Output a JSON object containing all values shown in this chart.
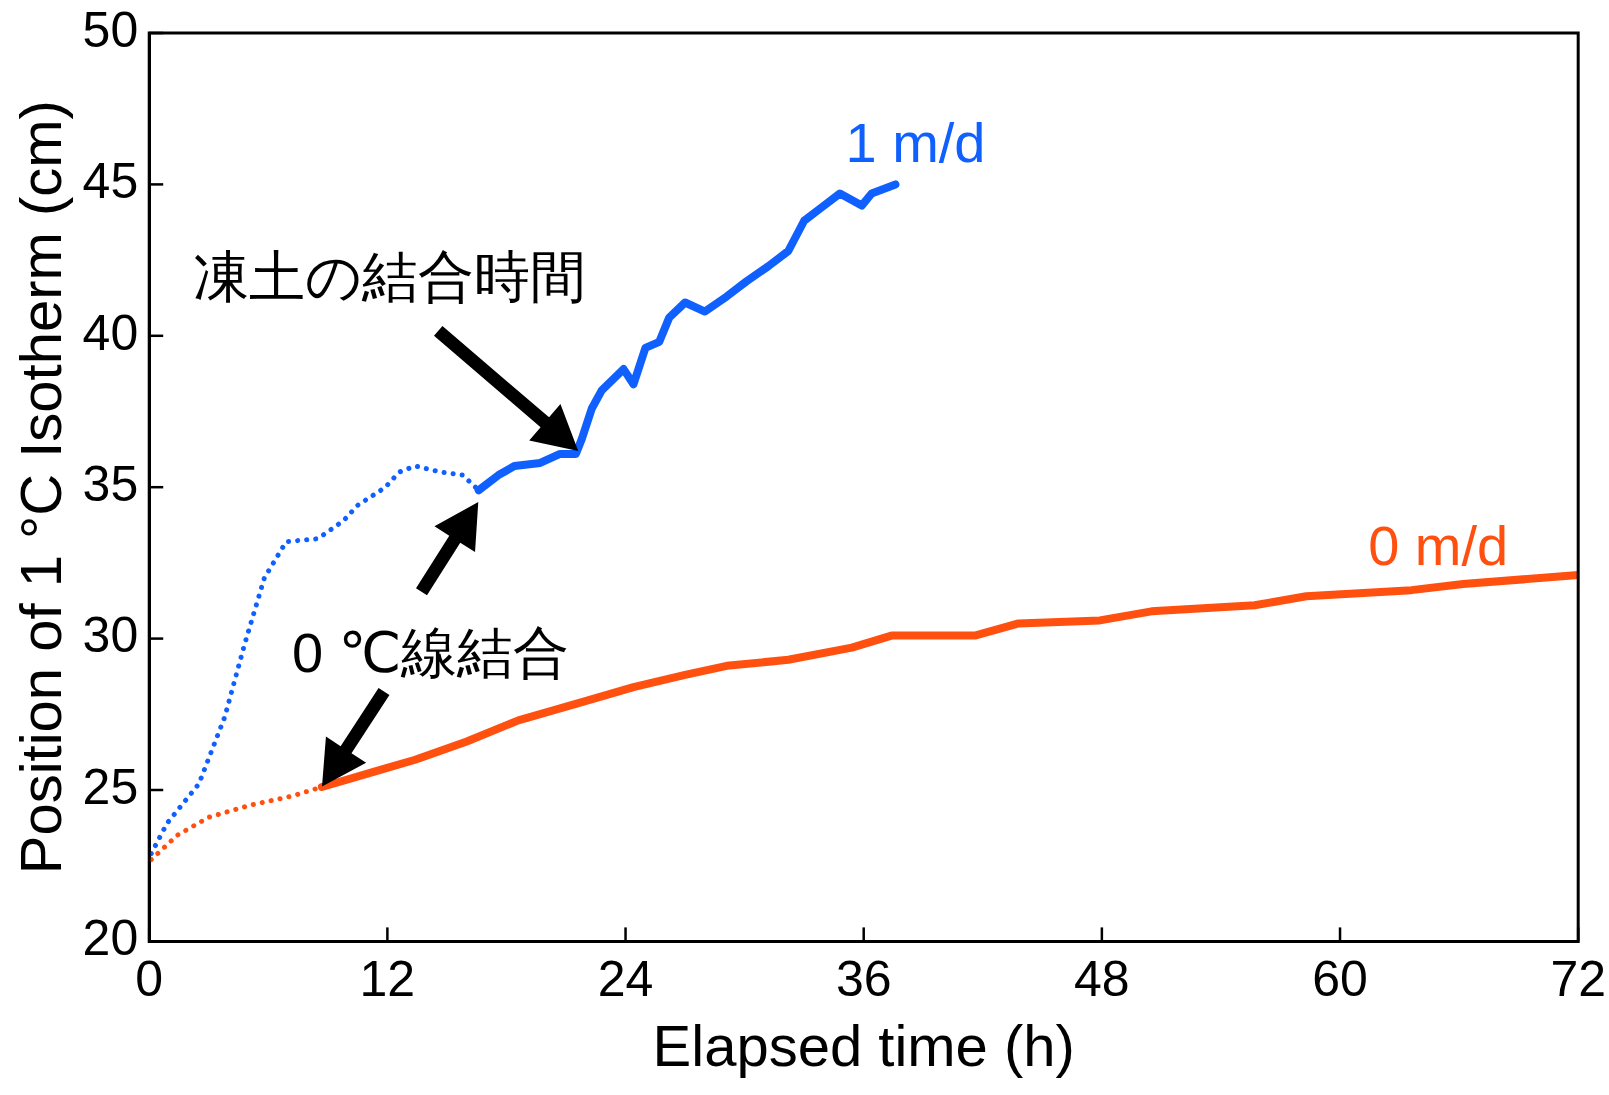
{
  "chart_data": {
    "type": "line",
    "xlabel": "Elapsed time (h)",
    "ylabel": "Position of 1 °C Isotherm (cm)",
    "xlim": [
      0,
      72
    ],
    "xticks": [
      0,
      12,
      24,
      36,
      48,
      60,
      72
    ],
    "ylim": [
      20,
      50
    ],
    "yticks": [
      20,
      25,
      30,
      35,
      40,
      45,
      50
    ],
    "grid": false,
    "legend": false,
    "marker": "none",
    "series": [
      {
        "color": "#1060ff",
        "line_style": "dotted",
        "x": [
          0.1,
          0.9,
          2.5,
          3.8,
          4.8,
          5.8,
          6.9,
          8.5,
          9.8,
          10.5,
          11.9,
          12.6,
          13.4,
          14.7,
          15.8,
          16.6
        ],
        "values": [
          22.9,
          23.9,
          25.2,
          27.4,
          29.8,
          32.0,
          33.2,
          33.3,
          33.9,
          34.4,
          35.0,
          35.5,
          35.7,
          35.5,
          35.4,
          34.9
        ]
      },
      {
        "name": "1 m/d",
        "color": "#1060ff",
        "line_style": "solid",
        "x": [
          16.6,
          17.6,
          18.4,
          19.7,
          20.7,
          21.5,
          21.8,
          22.3,
          22.8,
          23.9,
          24.4,
          25.0,
          25.7,
          26.2,
          27.0,
          28.0,
          29.1,
          30.1,
          31.2,
          32.2,
          33.0,
          33.8,
          34.8,
          35.9,
          36.4,
          37.6
        ],
        "values": [
          34.9,
          35.4,
          35.7,
          35.8,
          36.1,
          36.1,
          36.6,
          37.6,
          38.2,
          38.9,
          38.4,
          39.6,
          39.8,
          40.6,
          41.1,
          40.8,
          41.3,
          41.8,
          42.3,
          42.8,
          43.8,
          44.2,
          44.7,
          44.3,
          44.7,
          45.0
        ]
      },
      {
        "color": "#ff5010",
        "line_style": "dotted",
        "x": [
          0.1,
          1.4,
          3.0,
          5.1,
          7.2,
          8.7
        ],
        "values": [
          22.7,
          23.5,
          24.1,
          24.5,
          24.8,
          25.1
        ]
      },
      {
        "name": "0 m/d",
        "color": "#ff5010",
        "line_style": "solid",
        "x": [
          8.7,
          11.3,
          13.4,
          16.0,
          18.6,
          21.8,
          24.4,
          27.0,
          29.1,
          32.2,
          35.4,
          37.4,
          41.6,
          43.8,
          47.9,
          50.5,
          55.7,
          58.3,
          63.6,
          66.2,
          72
        ],
        "values": [
          25.1,
          25.6,
          26.0,
          26.6,
          27.3,
          27.9,
          28.4,
          28.8,
          29.1,
          29.3,
          29.7,
          30.1,
          30.1,
          30.5,
          30.6,
          30.9,
          31.1,
          31.4,
          31.6,
          31.8,
          32.1
        ]
      }
    ],
    "annotations": [
      {
        "text": "凍土の結合時間",
        "x": 21.6,
        "y": 36.2
      },
      {
        "text": "0 ℃線結合",
        "x": 8.7,
        "y": 25.1
      }
    ]
  }
}
